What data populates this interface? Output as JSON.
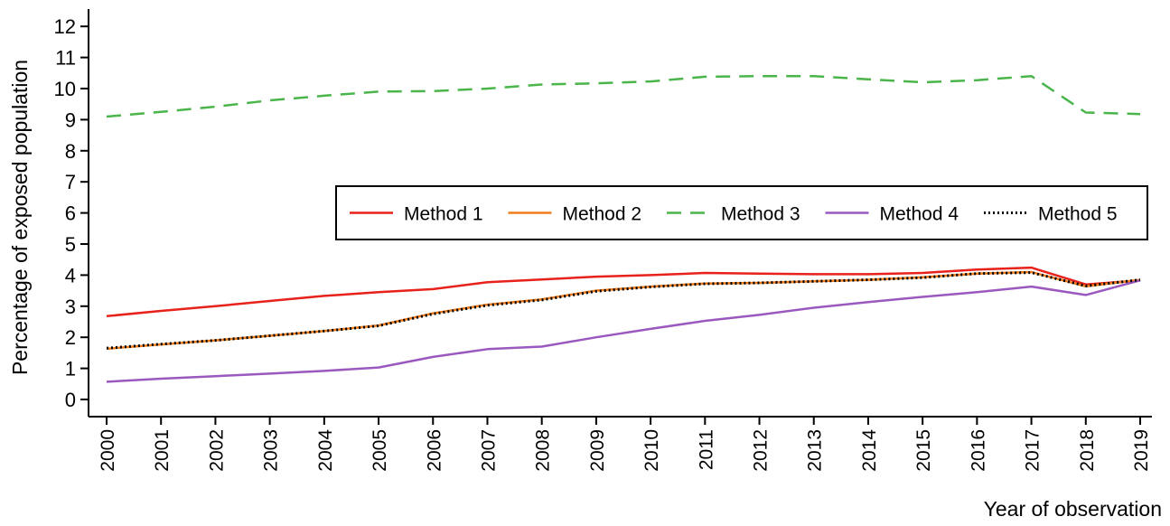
{
  "chart_data": {
    "type": "line",
    "title": "",
    "xlabel": "Year of observation",
    "ylabel": "Percentage of exposed population",
    "ylim": [
      0,
      12
    ],
    "yticks": [
      "0",
      "1",
      "2",
      "3",
      "4",
      "5",
      "6",
      "7",
      "8",
      "9",
      "10",
      "11",
      "12"
    ],
    "categories": [
      "2000",
      "2001",
      "2002",
      "2003",
      "2004",
      "2005",
      "2006",
      "2007",
      "2008",
      "2009",
      "2010",
      "2011",
      "2012",
      "2013",
      "2014",
      "2015",
      "2016",
      "2017",
      "2018",
      "2019"
    ],
    "legend_position": "center-right",
    "grid": false,
    "series": [
      {
        "name": "Method 1",
        "color": "#e8211b",
        "dash": "solid",
        "values": [
          2.68,
          2.85,
          3.0,
          3.17,
          3.33,
          3.45,
          3.55,
          3.77,
          3.86,
          3.95,
          4.0,
          4.07,
          4.05,
          4.03,
          4.03,
          4.07,
          4.18,
          4.24,
          3.7,
          3.83
        ]
      },
      {
        "name": "Method 2",
        "color": "#f07c1c",
        "dash": "solid",
        "values": [
          1.63,
          1.77,
          1.9,
          2.05,
          2.2,
          2.38,
          2.77,
          3.05,
          3.22,
          3.5,
          3.63,
          3.73,
          3.75,
          3.8,
          3.85,
          3.93,
          4.05,
          4.1,
          3.64,
          3.85
        ]
      },
      {
        "name": "Method 3",
        "color": "#4ab54a",
        "dash": "dashed",
        "values": [
          9.1,
          9.25,
          9.42,
          9.62,
          9.77,
          9.9,
          9.92,
          10.0,
          10.13,
          10.17,
          10.23,
          10.38,
          10.4,
          10.4,
          10.3,
          10.2,
          10.27,
          10.4,
          9.23,
          9.18
        ]
      },
      {
        "name": "Method 4",
        "color": "#9b59c0",
        "dash": "solid",
        "values": [
          0.57,
          0.67,
          0.75,
          0.83,
          0.92,
          1.03,
          1.37,
          1.62,
          1.7,
          2.0,
          2.27,
          2.53,
          2.72,
          2.95,
          3.13,
          3.3,
          3.45,
          3.63,
          3.36,
          3.83
        ]
      },
      {
        "name": "Method 5",
        "color": "#000000",
        "dash": "dotted",
        "values": [
          1.65,
          1.78,
          1.9,
          2.05,
          2.2,
          2.37,
          2.75,
          3.03,
          3.2,
          3.48,
          3.62,
          3.72,
          3.75,
          3.8,
          3.85,
          3.92,
          4.05,
          4.08,
          3.65,
          3.85
        ]
      }
    ]
  }
}
